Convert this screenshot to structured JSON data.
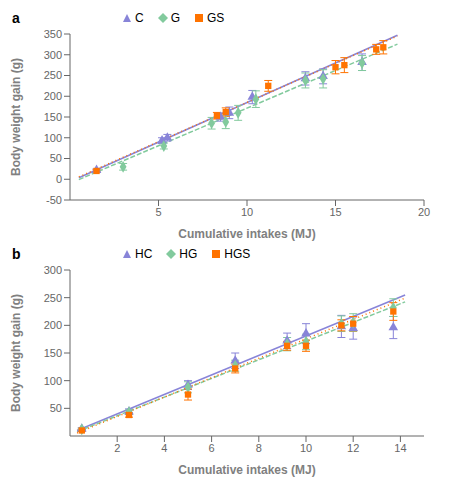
{
  "chart_data": [
    {
      "type": "scatter",
      "title": "a",
      "x_label": "Cumulative intakes (MJ)",
      "y_label": "Body weight gain (g)",
      "xlim": [
        0,
        20
      ],
      "ylim": [
        -50,
        350
      ],
      "xticks": [
        5,
        10,
        15,
        20
      ],
      "yticks": [
        -50,
        0,
        50,
        100,
        150,
        200,
        250,
        300,
        350
      ],
      "grid": false,
      "legend": "top",
      "series": [
        {
          "name": "C",
          "color": "#8884d8",
          "marker": "triangle",
          "line_style": "solid",
          "x": [
            1.5,
            5.2,
            5.5,
            8.5,
            9.0,
            10.3,
            13.3,
            14.3,
            16.5
          ],
          "values": [
            22,
            93,
            100,
            150,
            160,
            198,
            243,
            248,
            282
          ],
          "errors": [
            3,
            7,
            8,
            10,
            14,
            16,
            16,
            18,
            20
          ],
          "fit": {
            "x": [
              0.5,
              18.5
            ],
            "values": [
              3.595,
              346.855
            ]
          }
        },
        {
          "name": "G",
          "color": "#82ca9d",
          "marker": "diamond",
          "line_style": "dashed",
          "x": [
            3.0,
            5.3,
            8.0,
            8.8,
            9.5,
            10.5,
            13.3,
            14.3,
            16.5
          ],
          "values": [
            30,
            80,
            135,
            138,
            160,
            193,
            238,
            242,
            280
          ],
          "errors": [
            8,
            7,
            14,
            16,
            18,
            20,
            18,
            22,
            18
          ],
          "fit": {
            "x": [
              0.5,
              18.5
            ],
            "values": [
              -0.875,
              325.465
            ]
          }
        },
        {
          "name": "GS",
          "color": "#ff7300",
          "marker": "square",
          "line_style": "dotted",
          "x": [
            1.5,
            8.3,
            8.8,
            11.2,
            15.0,
            15.5,
            17.3,
            17.7
          ],
          "values": [
            20,
            153,
            162,
            225,
            270,
            275,
            313,
            318
          ],
          "errors": [
            3,
            8,
            10,
            13,
            16,
            18,
            12,
            16
          ],
          "fit": {
            "x": [
              0.5,
              18.5
            ],
            "values": [
              5.7995,
              345.18
            ]
          }
        }
      ]
    },
    {
      "type": "scatter",
      "title": "b",
      "x_label": "Cumulative intakes (MJ)",
      "y_label": "Body weight gain (g)",
      "xlim": [
        0,
        15
      ],
      "ylim": [
        0,
        300
      ],
      "xticks": [
        2,
        4,
        6,
        8,
        10,
        12,
        14
      ],
      "yticks": [
        50,
        100,
        150,
        200,
        250,
        300
      ],
      "grid": false,
      "legend": "top",
      "series": [
        {
          "name": "HC",
          "color": "#8884d8",
          "marker": "triangle",
          "line_style": "solid",
          "x": [
            0.5,
            2.5,
            5.0,
            7.0,
            9.2,
            10.0,
            11.5,
            12.0,
            13.7
          ],
          "values": [
            13,
            44,
            92,
            136,
            172,
            185,
            198,
            195,
            196
          ],
          "errors": [
            2,
            5,
            8,
            14,
            14,
            18,
            20,
            20,
            20
          ],
          "fit": {
            "x": [
              0.3,
              14.2
            ],
            "values": [
              9.976,
              254.894
            ]
          }
        },
        {
          "name": "HG",
          "color": "#82ca9d",
          "marker": "diamond",
          "line_style": "dashed",
          "x": [
            0.5,
            2.5,
            5.0,
            7.0,
            9.2,
            10.0,
            11.5,
            12.0,
            13.7
          ],
          "values": [
            12,
            43,
            88,
            127,
            166,
            170,
            203,
            205,
            232
          ],
          "errors": [
            2,
            4,
            10,
            10,
            12,
            14,
            14,
            16,
            16
          ],
          "fit": {
            "x": [
              0.3,
              14.2
            ],
            "values": [
              7.834,
              242.466
            ]
          }
        },
        {
          "name": "HGS",
          "color": "#ff7300",
          "marker": "square",
          "line_style": "dotted",
          "x": [
            0.5,
            2.5,
            5.0,
            7.0,
            9.2,
            10.0,
            11.5,
            12.0,
            13.7
          ],
          "values": [
            10,
            38,
            75,
            122,
            163,
            163,
            200,
            203,
            225
          ],
          "errors": [
            2,
            4,
            10,
            8,
            8,
            10,
            10,
            13,
            16
          ],
          "fit": {
            "x": [
              0.3,
              14.2
            ],
            "values": [
              5.412,
              249.218
            ]
          }
        }
      ]
    }
  ]
}
